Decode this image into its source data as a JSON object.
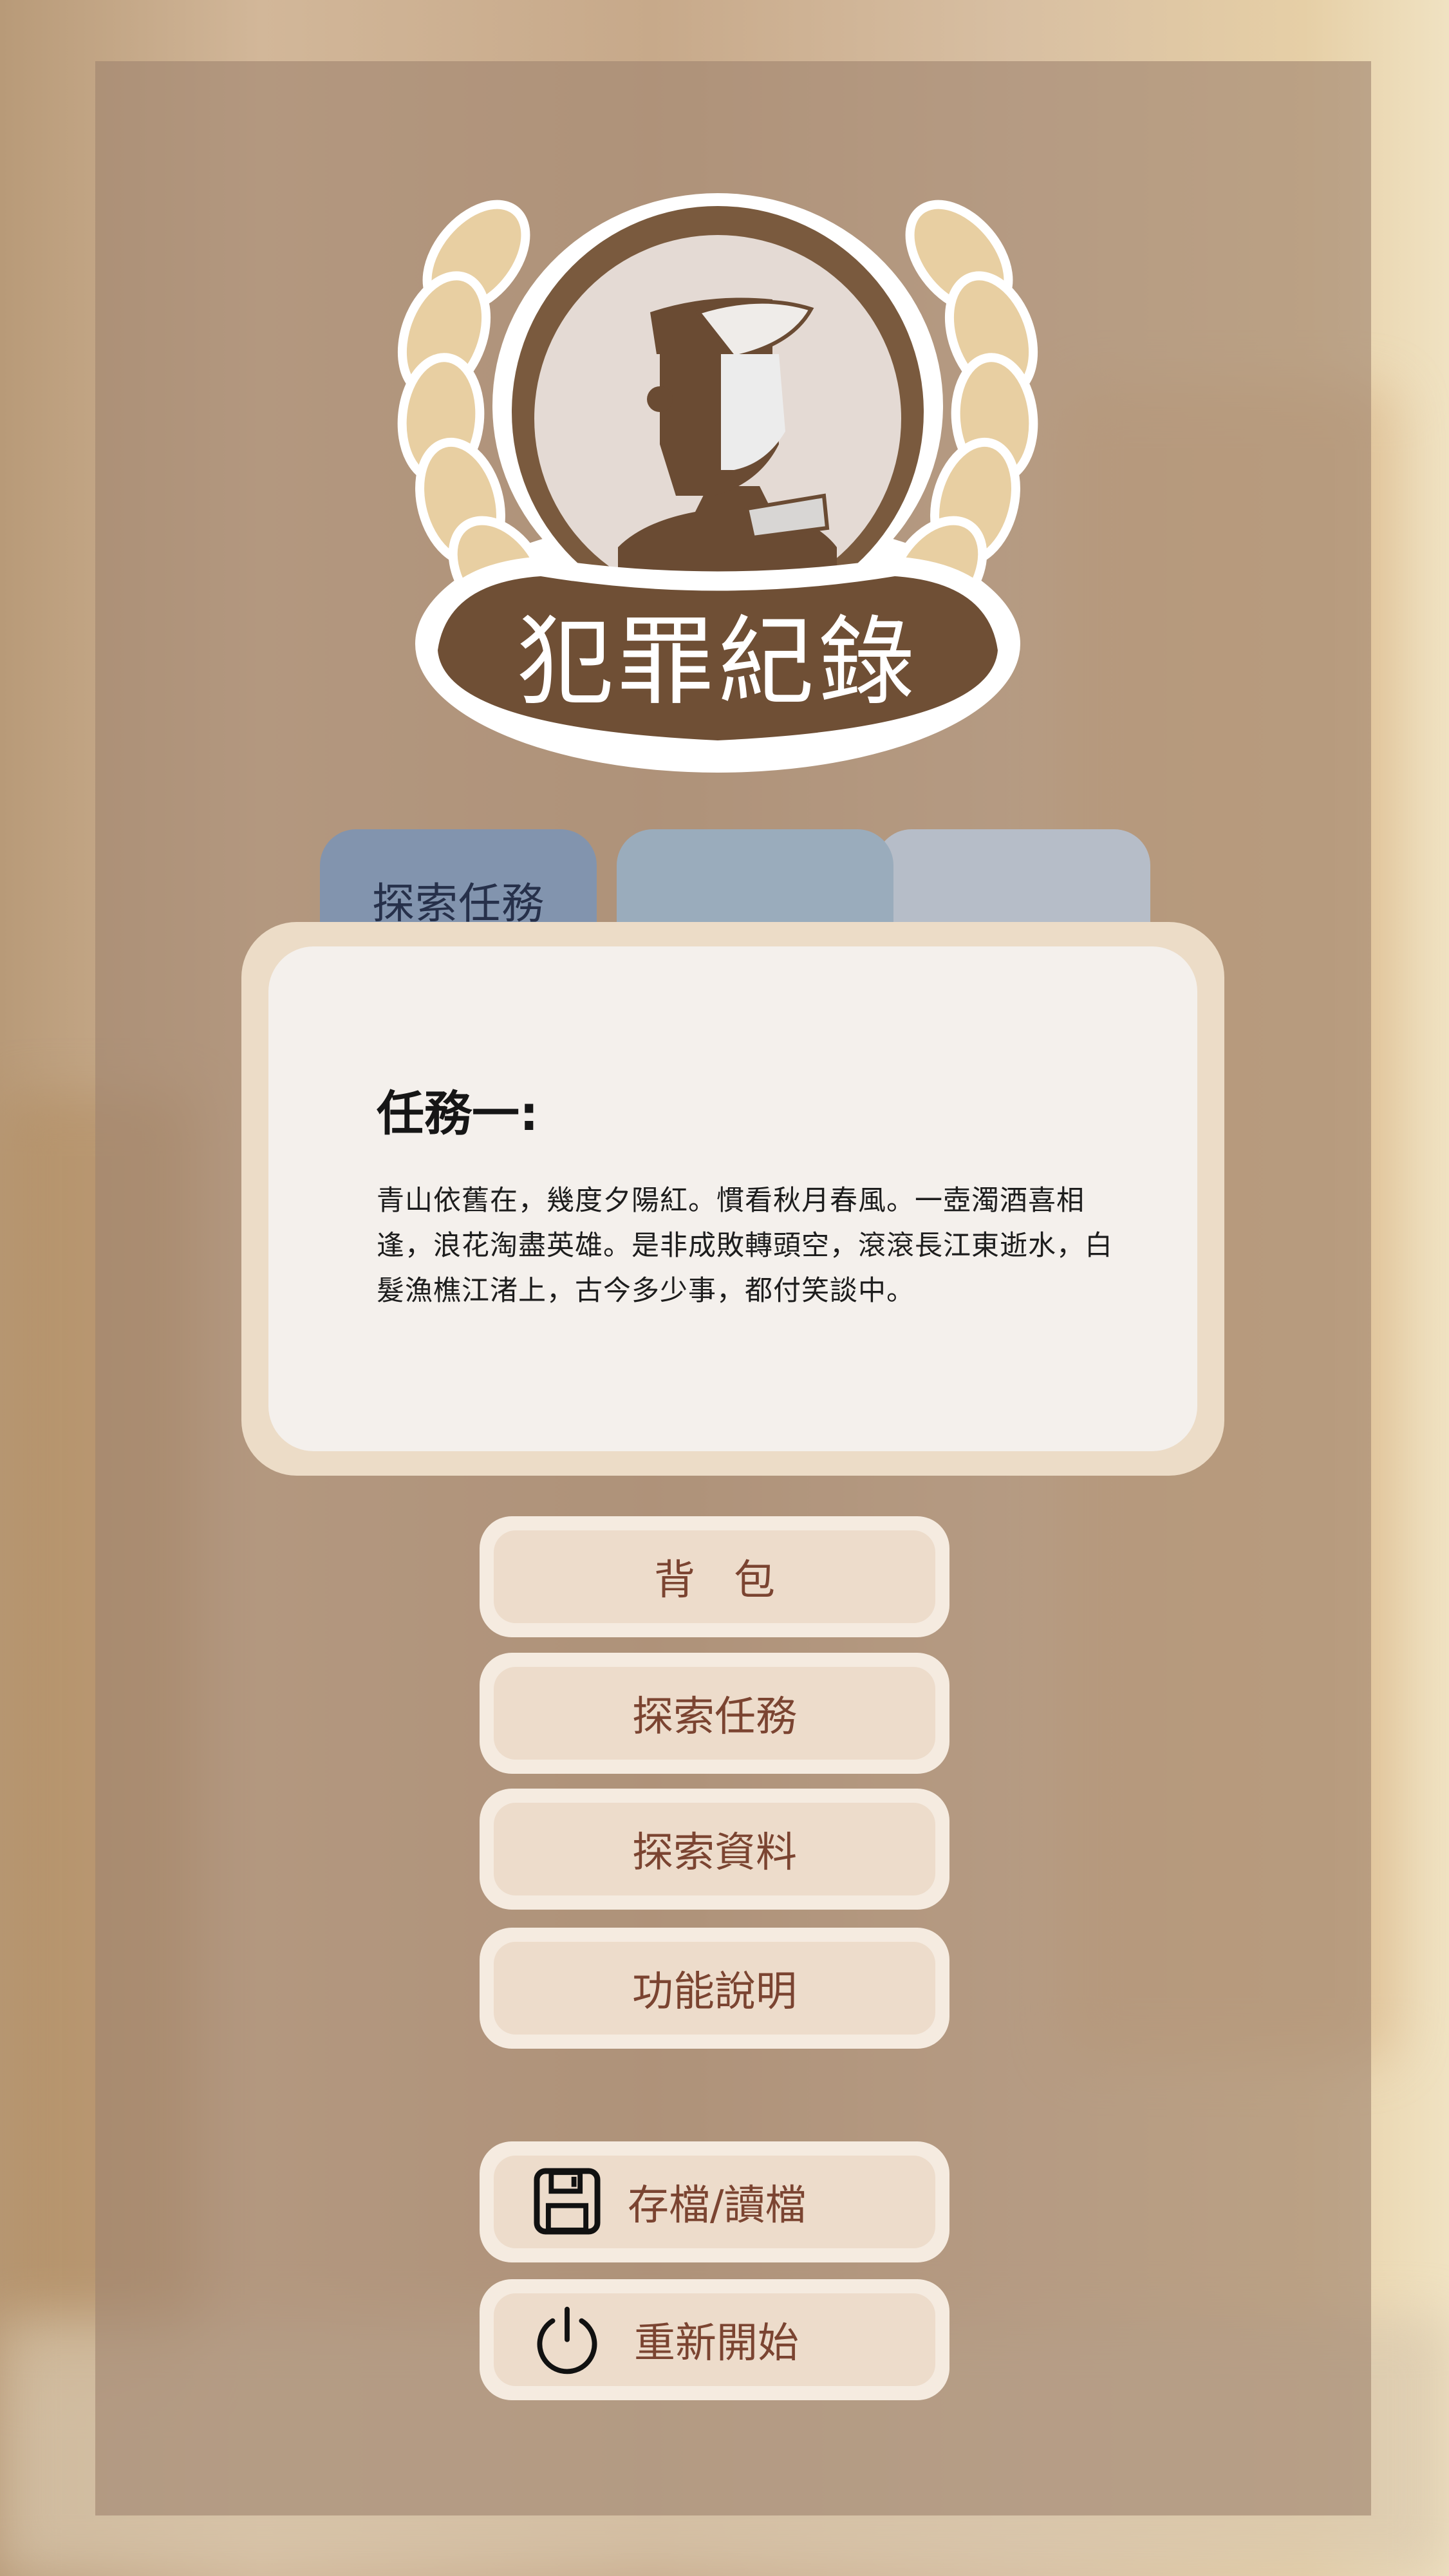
{
  "emblem": {
    "title": "犯罪紀錄"
  },
  "tabs": [
    {
      "label": "探索任務"
    },
    {
      "label": ""
    },
    {
      "label": ""
    }
  ],
  "mission": {
    "title": "任務一:",
    "body": "青山依舊在，幾度夕陽紅。慣看秋月春風。一壺濁酒喜相逢，浪花淘盡英雄。是非成敗轉頭空，滾滾長江東逝水，白髮漁樵江渚上，古今多少事，都付笑談中。"
  },
  "menu": {
    "backpack": "背包",
    "quests": "探索任務",
    "data": "探索資料",
    "help": "功能說明",
    "save_load": "存檔/讀檔",
    "restart": "重新開始"
  },
  "icons": {
    "save": "floppy-disk-icon",
    "restart": "power-icon"
  },
  "colors": {
    "accent_text": "#7b4431",
    "tab_active": "#8294ae",
    "emblem_brown": "#6f4f35"
  }
}
